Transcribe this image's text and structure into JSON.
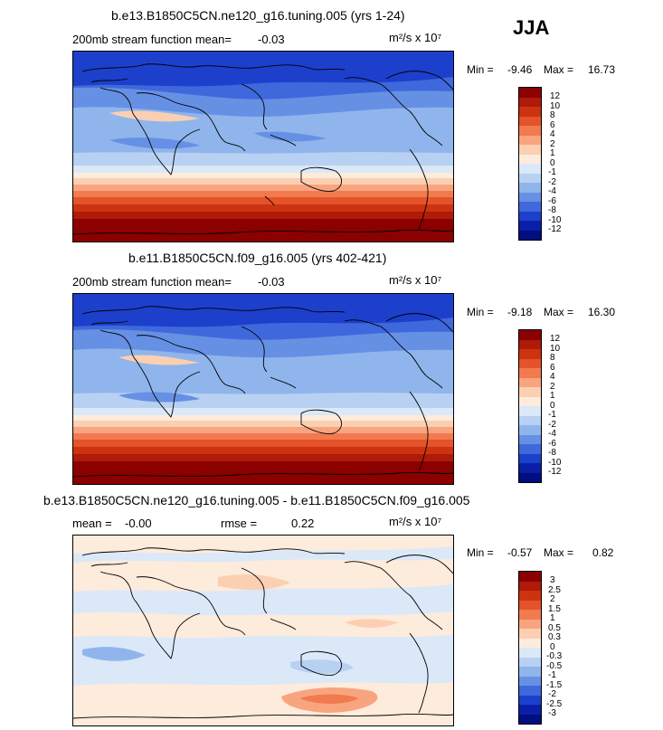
{
  "season": "JJA",
  "panels": [
    {
      "title": "b.e13.B1850C5CN.ne120_g16.tuning.005 (yrs 1-24)",
      "left_text": "200mb stream function   mean=",
      "mean": "-0.03",
      "mid_text": "",
      "units": "m²/s x 10⁷",
      "min_label": "Min =",
      "min": "-9.46",
      "max_label": "Max =",
      "max": "16.73",
      "colorbar_levels": [
        "12",
        "10",
        "8",
        "6",
        "4",
        "2",
        "1",
        "0",
        "-1",
        "-2",
        "-4",
        "-6",
        "-8",
        "-10",
        "-12"
      ]
    },
    {
      "title": "b.e11.B1850C5CN.f09_g16.005 (yrs 402-421)",
      "left_text": "200mb stream function   mean=",
      "mean": "-0.03",
      "mid_text": "",
      "units": "m²/s x 10⁷",
      "min_label": "Min =",
      "min": "-9.18",
      "max_label": "Max =",
      "max": "16.30",
      "colorbar_levels": [
        "12",
        "10",
        "8",
        "6",
        "4",
        "2",
        "1",
        "0",
        "-1",
        "-2",
        "-4",
        "-6",
        "-8",
        "-10",
        "-12"
      ]
    },
    {
      "title": "b.e13.B1850C5CN.ne120_g16.tuning.005 - b.e11.B1850C5CN.f09_g16.005",
      "left_text": "mean =",
      "mean": "-0.00",
      "mid_text": "rmse =",
      "rmse": "0.22",
      "units": "m²/s x 10⁷",
      "min_label": "Min =",
      "min": "-0.57",
      "max_label": "Max =",
      "max": "0.82",
      "colorbar_levels": [
        "3",
        "2.5",
        "2",
        "1.5",
        "1",
        "0.5",
        "0.3",
        "0",
        "-0.3",
        "-0.5",
        "-1",
        "-1.5",
        "-2",
        "-2.5",
        "-3"
      ]
    }
  ],
  "colors": {
    "scale": [
      "#8b0000",
      "#b01a08",
      "#cc3311",
      "#e4532a",
      "#f27a4f",
      "#f8a57f",
      "#fbcfb2",
      "#fdebdc",
      "#dbe8f8",
      "#b8d1f2",
      "#8fb5ec",
      "#6690e4",
      "#3f68dc",
      "#1c40cc",
      "#0a1fa8",
      "#000e80"
    ]
  }
}
